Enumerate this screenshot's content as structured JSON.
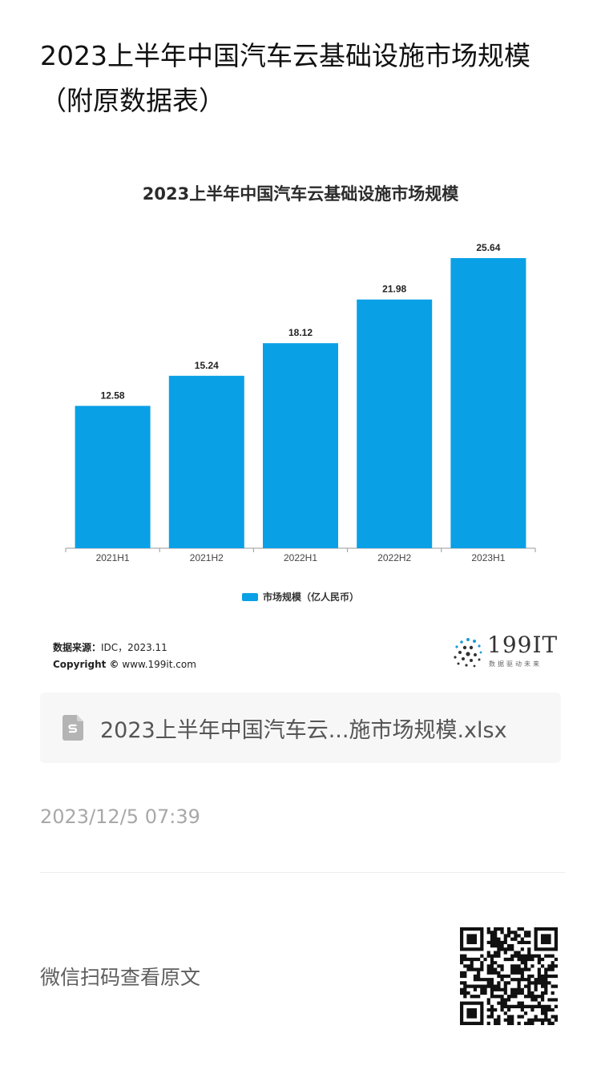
{
  "page": {
    "title": "2023上半年中国汽车云基础设施市场规模（附原数据表）"
  },
  "chart_data": {
    "type": "bar",
    "title": "2023上半年中国汽车云基础设施市场规模",
    "categories": [
      "2021H1",
      "2021H2",
      "2022H1",
      "2022H2",
      "2023H1"
    ],
    "series": [
      {
        "name": "市场规模（亿人民币）",
        "values": [
          12.58,
          15.24,
          18.12,
          21.98,
          25.64
        ]
      }
    ],
    "data_labels": [
      "12.58",
      "15.24",
      "18.12",
      "21.98",
      "25.64"
    ],
    "ylim": [
      0,
      27.2
    ],
    "grid": false,
    "legend_position": "bottom",
    "bar_color": "#0aa0e6"
  },
  "source": {
    "label": "数据来源：",
    "value": "IDC，2023.11",
    "copyright_label": "Copyright ©",
    "copyright_value": "www.199it.com"
  },
  "logo": {
    "text": "199IT",
    "sub": "数据驱动未来"
  },
  "file": {
    "icon": "spreadsheet-file-icon",
    "name": "2023上半年中国汽车云...施市场规模.xlsx"
  },
  "timestamp": "2023/12/5 07:39",
  "qr_hint": "微信扫码查看原文"
}
